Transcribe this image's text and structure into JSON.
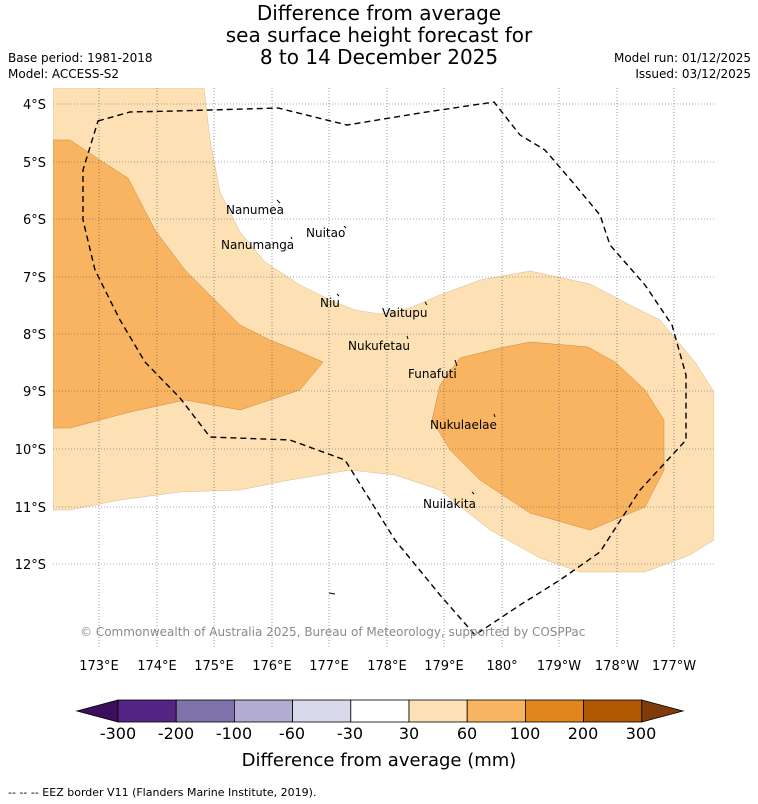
{
  "title": {
    "line1": "Difference from average",
    "line2": "sea surface height forecast for",
    "line3": "8 to 14 December 2025"
  },
  "meta": {
    "base_period": "Base period: 1981-2018",
    "model": "Model: ACCESS-S2",
    "model_run": "Model run: 01/12/2025",
    "issued": "Issued: 03/12/2025"
  },
  "map": {
    "lat_labels": [
      "4°S",
      "5°S",
      "6°S",
      "7°S",
      "8°S",
      "9°S",
      "10°S",
      "11°S",
      "12°S"
    ],
    "lon_labels": [
      "173°E",
      "174°E",
      "175°E",
      "176°E",
      "177°E",
      "178°E",
      "179°E",
      "180°",
      "179°W",
      "178°W",
      "177°W"
    ],
    "islands": [
      {
        "name": "Nanumea"
      },
      {
        "name": "Nuitao"
      },
      {
        "name": "Nanumanga"
      },
      {
        "name": "Niu"
      },
      {
        "name": "Vaitupu"
      },
      {
        "name": "Nukufetau"
      },
      {
        "name": "Funafuti"
      },
      {
        "name": "Nukulaelae"
      },
      {
        "name": "Nuilakita"
      }
    ],
    "copyright": "© Commonwealth of Australia 2025, Bureau of Meteorology, supported by COSPPac",
    "colors": {
      "band_30_60": "#fde0b4",
      "band_60_100": "#f9b461",
      "band_100_200": "#e2861c",
      "band_200_300": "#b15805",
      "grid": "#555555"
    }
  },
  "colorbar": {
    "ticks": [
      "-300",
      "-200",
      "-100",
      "-60",
      "-30",
      "30",
      "60",
      "100",
      "200",
      "300"
    ],
    "title": "Difference from average (mm)",
    "colors": [
      "#3b0f5c",
      "#542585",
      "#8073ac",
      "#b2abd2",
      "#d8daeb",
      "#ffffff",
      "#fde0b4",
      "#f9b461",
      "#e2861c",
      "#b15805",
      "#7f3b08"
    ]
  },
  "footer": {
    "legend": "-- -- -- EEZ border V11 (Flanders Marine Institute, 2019)."
  }
}
